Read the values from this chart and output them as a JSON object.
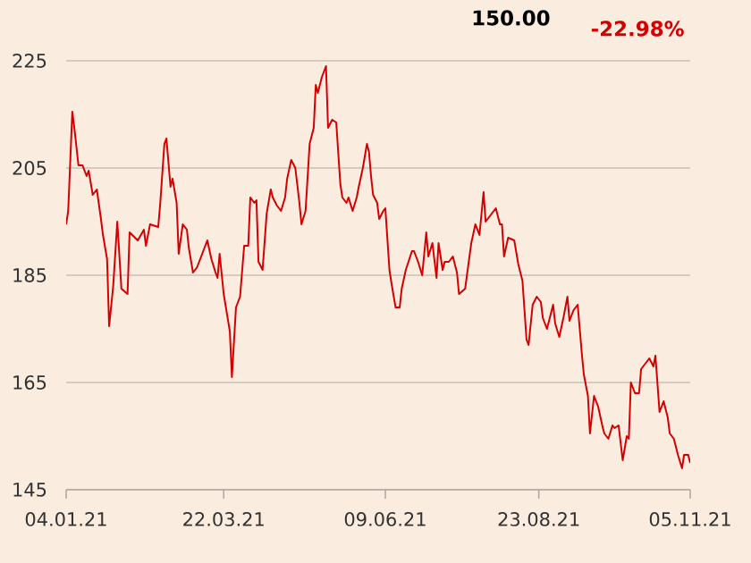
{
  "chart_data": {
    "type": "line",
    "annotations": [
      "150.00",
      "-22.98%"
    ],
    "xlim": [
      "2021-01-04",
      "2021-11-05"
    ],
    "xticks": [
      {
        "value": "2021-01-04",
        "label": "04.01.21"
      },
      {
        "value": "2021-03-22",
        "label": "22.03.21"
      },
      {
        "value": "2021-06-09",
        "label": "09.06.21"
      },
      {
        "value": "2021-08-23",
        "label": "23.08.21"
      },
      {
        "value": "2021-11-05",
        "label": "05.11.21"
      }
    ],
    "ylim": [
      145,
      225
    ],
    "yticks": [
      145,
      165,
      185,
      205,
      225
    ],
    "grid": "y",
    "series": [
      {
        "color": "#d40000",
        "x": [
          "2021-01-04",
          "2021-01-05",
          "2021-01-07",
          "2021-01-08",
          "2021-01-10",
          "2021-01-12",
          "2021-01-14",
          "2021-01-15",
          "2021-01-17",
          "2021-01-19",
          "2021-01-21",
          "2021-01-22",
          "2021-01-24",
          "2021-01-25",
          "2021-01-27",
          "2021-01-29",
          "2021-01-31",
          "2021-02-03",
          "2021-02-04",
          "2021-02-08",
          "2021-02-11",
          "2021-02-12",
          "2021-02-14",
          "2021-02-18",
          "2021-02-19",
          "2021-02-21",
          "2021-02-22",
          "2021-02-24",
          "2021-02-25",
          "2021-02-27",
          "2021-02-28",
          "2021-03-02",
          "2021-03-04",
          "2021-03-05",
          "2021-03-07",
          "2021-03-09",
          "2021-03-11",
          "2021-03-12",
          "2021-03-14",
          "2021-03-16",
          "2021-03-18",
          "2021-03-19",
          "2021-03-20",
          "2021-03-22",
          "2021-03-25",
          "2021-03-26",
          "2021-03-28",
          "2021-03-30",
          "2021-04-01",
          "2021-04-03",
          "2021-04-04",
          "2021-04-06",
          "2021-04-07",
          "2021-04-08",
          "2021-04-10",
          "2021-04-12",
          "2021-04-14",
          "2021-04-15",
          "2021-04-17",
          "2021-04-19",
          "2021-04-21",
          "2021-04-22",
          "2021-04-24",
          "2021-04-26",
          "2021-04-28",
          "2021-04-29",
          "2021-05-01",
          "2021-05-03",
          "2021-05-05",
          "2021-05-06",
          "2021-05-07",
          "2021-05-09",
          "2021-05-11",
          "2021-05-12",
          "2021-05-14",
          "2021-05-16",
          "2021-05-18",
          "2021-05-19",
          "2021-05-21",
          "2021-05-22",
          "2021-05-24",
          "2021-05-26",
          "2021-05-27",
          "2021-05-29",
          "2021-05-31",
          "2021-06-01",
          "2021-06-02",
          "2021-06-03",
          "2021-06-05",
          "2021-06-06",
          "2021-06-08",
          "2021-06-09",
          "2021-06-11",
          "2021-06-12",
          "2021-06-14",
          "2021-06-16",
          "2021-06-17",
          "2021-06-19",
          "2021-06-22",
          "2021-06-23",
          "2021-06-25",
          "2021-06-27",
          "2021-06-29",
          "2021-06-30",
          "2021-07-02",
          "2021-07-04",
          "2021-07-05",
          "2021-07-07",
          "2021-07-08",
          "2021-07-10",
          "2021-07-12",
          "2021-07-14",
          "2021-07-15",
          "2021-07-18",
          "2021-07-21",
          "2021-07-23",
          "2021-07-25",
          "2021-07-27",
          "2021-07-28",
          "2021-07-30",
          "2021-08-02",
          "2021-08-04",
          "2021-08-05",
          "2021-08-06",
          "2021-08-08",
          "2021-08-11",
          "2021-08-13",
          "2021-08-15",
          "2021-08-17",
          "2021-08-18",
          "2021-08-20",
          "2021-08-22",
          "2021-08-24",
          "2021-08-25",
          "2021-08-27",
          "2021-08-30",
          "2021-08-31",
          "2021-09-02",
          "2021-09-04",
          "2021-09-06",
          "2021-09-07",
          "2021-09-09",
          "2021-09-11",
          "2021-09-13",
          "2021-09-14",
          "2021-09-16",
          "2021-09-17",
          "2021-09-19",
          "2021-09-21",
          "2021-09-23",
          "2021-09-24",
          "2021-09-26",
          "2021-09-28",
          "2021-09-29",
          "2021-10-01",
          "2021-10-03",
          "2021-10-05",
          "2021-10-06",
          "2021-10-07",
          "2021-10-09",
          "2021-10-11",
          "2021-10-12",
          "2021-10-14",
          "2021-10-16",
          "2021-10-18",
          "2021-10-19",
          "2021-10-21",
          "2021-10-23",
          "2021-10-25",
          "2021-10-26",
          "2021-10-28",
          "2021-10-30",
          "2021-11-01",
          "2021-11-02",
          "2021-11-04",
          "2021-11-05"
        ],
        "values": [
          194.5,
          197,
          215.5,
          212.5,
          205.5,
          205.5,
          203.5,
          204.5,
          200,
          201,
          195.5,
          192.5,
          188,
          175.5,
          183,
          195,
          182.5,
          181.5,
          193,
          191.5,
          193.5,
          190.5,
          194.5,
          194,
          198.5,
          209.5,
          210.5,
          201.5,
          203,
          198.5,
          189,
          194.5,
          193.5,
          190,
          185.5,
          186.5,
          188.5,
          189.5,
          191.5,
          188,
          185.5,
          184.5,
          189,
          181.5,
          174.5,
          166,
          179,
          181,
          190.5,
          190.5,
          199.5,
          198.5,
          199,
          187.5,
          186,
          196.5,
          201,
          199.5,
          198,
          197,
          199.5,
          203,
          206.5,
          205,
          198.5,
          194.5,
          197,
          209.5,
          212.5,
          220.5,
          219,
          222,
          224,
          212.5,
          214,
          213.5,
          202,
          199.5,
          198.5,
          199.5,
          197,
          199.5,
          201.5,
          205,
          209.5,
          208,
          203.5,
          200,
          198.5,
          195.5,
          197,
          197.5,
          186,
          183.5,
          179,
          179,
          182.5,
          186,
          189.5,
          189.5,
          187.5,
          185,
          193,
          188.5,
          191,
          184.5,
          191,
          186,
          187.5,
          187.5,
          188.5,
          185.5,
          181.5,
          182.5,
          191,
          194.5,
          192.5,
          200.5,
          195,
          196,
          197.5,
          194.5,
          194.5,
          188.5,
          192,
          191.5,
          187,
          184,
          173,
          172,
          179.5,
          181,
          180,
          177,
          175,
          179.5,
          176,
          173.5,
          177,
          181,
          176.5,
          178.5,
          179.5,
          170.5,
          166.5,
          162.5,
          155.5,
          162.5,
          160.5,
          157,
          155.5,
          154.5,
          157,
          156.5,
          157,
          150.5,
          155,
          154.5,
          165,
          163,
          163,
          167.5,
          168.5,
          169.5,
          168,
          170,
          159.5,
          161.5,
          158.5,
          155.5,
          154.5,
          151.5,
          149,
          151.5,
          151.5,
          150
        ]
      }
    ]
  }
}
